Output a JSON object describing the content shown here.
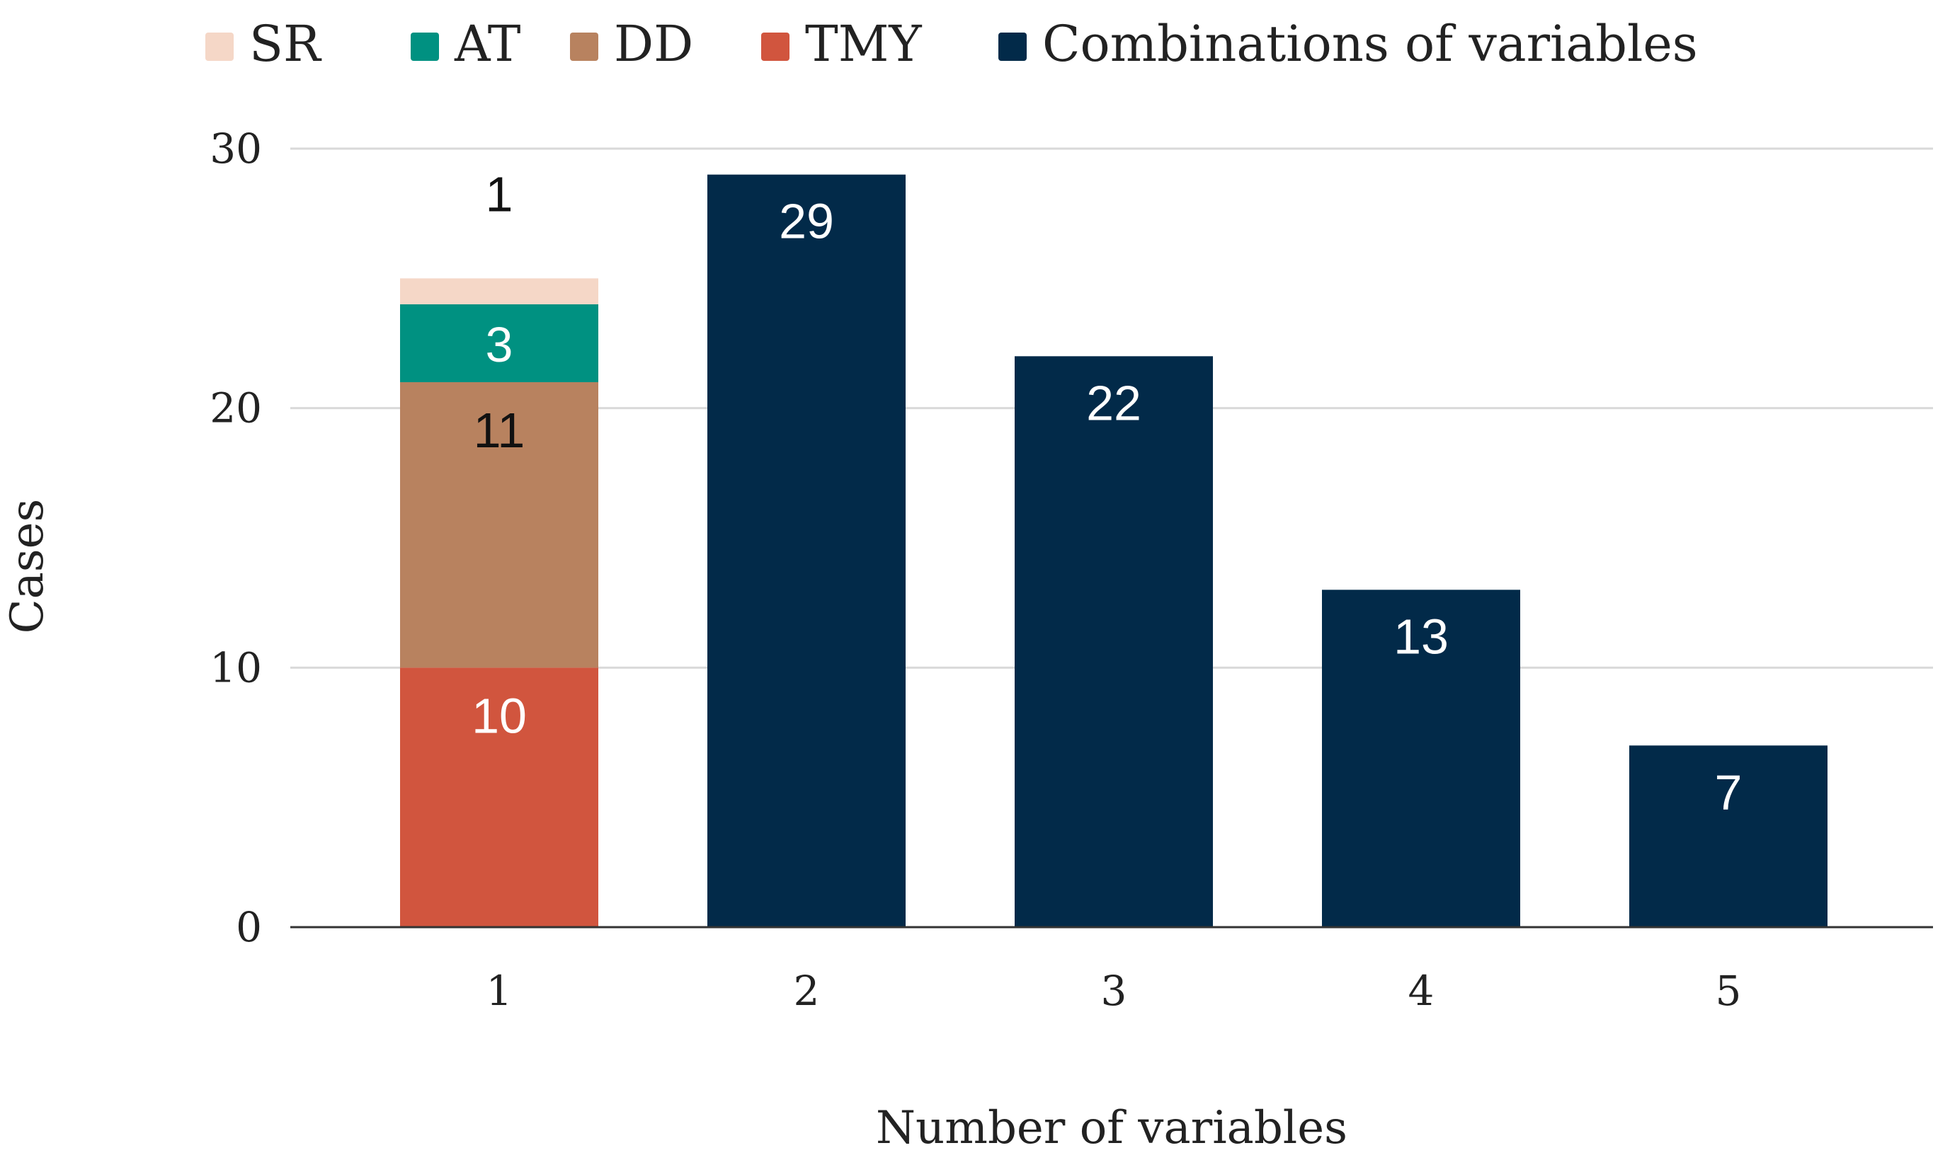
{
  "chart_data": {
    "type": "bar",
    "title": "",
    "xlabel": "Number of variables",
    "ylabel": "Cases",
    "categories": [
      "1",
      "2",
      "3",
      "4",
      "5"
    ],
    "ylim": [
      0,
      30
    ],
    "y_ticks": [
      0,
      10,
      20,
      30
    ],
    "grid": true,
    "legend_position": "top",
    "series": [
      {
        "name": "TMY",
        "color": "#d1553e",
        "values": [
          10,
          0,
          0,
          0,
          0
        ],
        "labels": [
          "10",
          "",
          "",
          "",
          ""
        ]
      },
      {
        "name": "DD",
        "color": "#b8825f",
        "values": [
          11,
          0,
          0,
          0,
          0
        ],
        "labels": [
          "11",
          "",
          "",
          "",
          ""
        ]
      },
      {
        "name": "AT",
        "color": "#009181",
        "values": [
          3,
          0,
          0,
          0,
          0
        ],
        "labels": [
          "3",
          "",
          "",
          "",
          ""
        ]
      },
      {
        "name": "SR",
        "color": "#f5d7c7",
        "values": [
          1,
          0,
          0,
          0,
          0
        ],
        "labels": [
          "1",
          "",
          "",
          "",
          ""
        ]
      },
      {
        "name": "Combinations of variables",
        "color": "#022a49",
        "values": [
          0,
          29,
          22,
          13,
          7
        ],
        "labels": [
          "",
          "29",
          "22",
          "13",
          "7"
        ]
      }
    ],
    "legend_order": [
      "SR",
      "AT",
      "DD",
      "TMY",
      "Combinations of variables"
    ]
  }
}
